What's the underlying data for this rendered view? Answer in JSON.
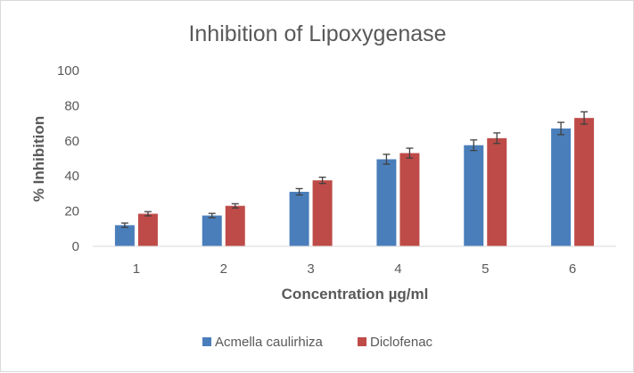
{
  "chart_data": {
    "type": "bar",
    "title": "Inhibition of Lipoxygenase",
    "xlabel": "Concentration µg/ml",
    "ylabel": "% Inhibition",
    "categories": [
      "1",
      "2",
      "3",
      "4",
      "5",
      "6"
    ],
    "ylim": [
      0,
      100
    ],
    "yticks": [
      0,
      20,
      40,
      60,
      80,
      100
    ],
    "grid": false,
    "legend": "bottom",
    "series": [
      {
        "name": "Acmella caulirhiza",
        "color": "#4a7ebb",
        "values": [
          12,
          17.5,
          31,
          49.5,
          57.5,
          67
        ],
        "errors": [
          1.2,
          1.2,
          1.8,
          2.8,
          3.0,
          3.5
        ]
      },
      {
        "name": "Diclofenac",
        "color": "#be4b48",
        "values": [
          18.5,
          23,
          37.5,
          53,
          61.5,
          73
        ],
        "errors": [
          1.2,
          1.2,
          1.8,
          2.8,
          3.0,
          3.5
        ]
      }
    ]
  }
}
